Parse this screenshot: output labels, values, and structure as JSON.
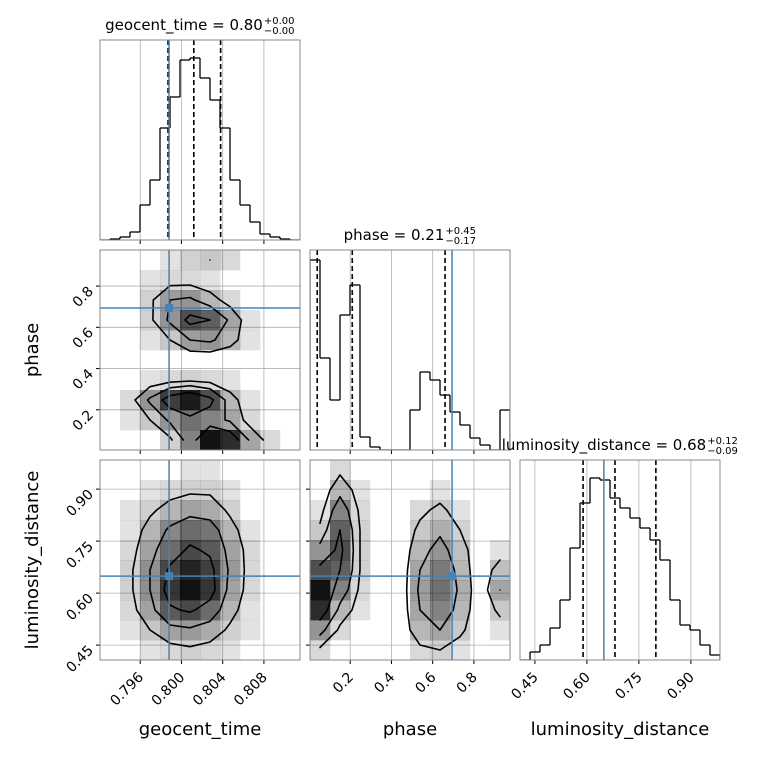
{
  "chart_data": [
    {
      "type": "histogram",
      "title": "geocent_time = 0.80",
      "title_upper": "+0.00",
      "title_lower": "−0.00",
      "bins": [
        0.7921,
        0.79307,
        0.79404,
        0.79501,
        0.79598,
        0.79695,
        0.79792,
        0.79889,
        0.79986,
        0.80083,
        0.8018,
        0.80277,
        0.80374,
        0.80471,
        0.80568,
        0.80665,
        0.80762,
        0.80859,
        0.80956,
        0.81053,
        0.8115
      ],
      "counts": [
        0,
        1,
        3,
        8,
        35,
        60,
        112,
        143,
        180,
        182,
        162,
        140,
        112,
        60,
        35,
        18,
        6,
        3,
        1,
        0
      ],
      "xlim": [
        0.7921,
        0.8115
      ],
      "ylim": [
        0,
        200
      ],
      "xticks": [
        0.796,
        0.8,
        0.804,
        0.808
      ],
      "quantiles": [
        0.7987,
        0.8012,
        0.8038
      ],
      "truth": 0.7988,
      "color": "#000000",
      "truth_color": "#4682b4",
      "grid": true
    },
    {
      "type": "hist2d",
      "ylabel": "phase",
      "xlim": [
        0.7921,
        0.8115
      ],
      "ylim": [
        0.005,
        0.975
      ],
      "xticks": [
        0.796,
        0.8,
        0.804,
        0.808
      ],
      "yticks": [
        0.2,
        0.4,
        0.6,
        0.8
      ],
      "counts": [
        [
          0,
          0,
          0,
          3,
          12,
          25,
          22,
          8,
          2,
          0
        ],
        [
          0,
          1,
          4,
          10,
          14,
          12,
          8,
          2,
          0,
          0
        ],
        [
          0,
          2,
          10,
          20,
          24,
          18,
          6,
          1,
          0,
          0
        ],
        [
          0,
          0,
          1,
          2,
          3,
          2,
          1,
          0,
          0,
          0
        ],
        [
          0,
          0,
          0,
          0,
          0,
          0,
          0,
          0,
          0,
          0
        ],
        [
          0,
          0,
          1,
          4,
          9,
          10,
          6,
          1,
          0,
          0
        ],
        [
          0,
          0,
          3,
          10,
          18,
          16,
          8,
          1,
          0,
          0
        ],
        [
          0,
          0,
          3,
          9,
          10,
          6,
          2,
          0,
          0,
          0
        ],
        [
          0,
          0,
          1,
          2,
          2,
          1,
          0,
          0,
          0,
          0
        ],
        [
          0,
          0,
          0,
          1,
          3,
          4,
          2,
          0,
          0,
          0
        ]
      ],
      "levels": [
        4,
        9,
        16
      ],
      "truth": [
        0.7988,
        0.694
      ],
      "color": "#000000",
      "truth_color": "#4682b4",
      "grid": true
    },
    {
      "type": "hist2d",
      "xlabel": "geocent_time",
      "ylabel": "luminosity_distance",
      "xlim": [
        0.7921,
        0.8115
      ],
      "ylim": [
        0.407,
        0.984
      ],
      "xticks": [
        0.796,
        {
          "value": 0.8,
          "label": "0.800"
        },
        0.804,
        0.808
      ],
      "yticks": [
        0.45,
        {
          "value": 0.6,
          "label": "0.60"
        },
        0.75,
        {
          "value": 0.9,
          "label": "0.90"
        }
      ],
      "counts": [
        [
          0,
          0,
          1,
          2,
          3,
          2,
          1,
          0,
          0,
          0
        ],
        [
          0,
          1,
          4,
          8,
          9,
          7,
          3,
          1,
          0,
          0
        ],
        [
          0,
          2,
          8,
          16,
          18,
          14,
          6,
          1,
          0,
          0
        ],
        [
          0,
          3,
          10,
          20,
          24,
          20,
          8,
          2,
          0,
          0
        ],
        [
          0,
          3,
          10,
          18,
          22,
          19,
          9,
          2,
          0,
          0
        ],
        [
          0,
          2,
          8,
          14,
          18,
          16,
          8,
          2,
          0,
          0
        ],
        [
          0,
          1,
          6,
          11,
          14,
          13,
          6,
          1,
          0,
          0
        ],
        [
          0,
          1,
          3,
          6,
          8,
          7,
          3,
          0,
          0,
          0
        ],
        [
          0,
          0,
          1,
          2,
          3,
          3,
          1,
          0,
          0,
          0
        ],
        [
          0,
          0,
          0,
          0,
          1,
          1,
          0,
          0,
          0,
          0
        ]
      ],
      "levels": [
        4,
        10,
        17
      ],
      "truth": [
        0.7988,
        0.649
      ],
      "color": "#000000",
      "truth_color": "#4682b4",
      "grid": true
    },
    {
      "type": "histogram",
      "title": "phase = 0.21",
      "title_upper": "+0.45",
      "title_lower": "−0.17",
      "bins": [
        0.005,
        0.0535,
        0.102,
        0.1505,
        0.199,
        0.2475,
        0.296,
        0.3445,
        0.393,
        0.4415,
        0.49,
        0.5385,
        0.587,
        0.6355,
        0.684,
        0.7325,
        0.781,
        0.8295,
        0.878,
        0.9265,
        0.975
      ],
      "counts": [
        190,
        92,
        50,
        135,
        165,
        13,
        3,
        0,
        0,
        0,
        40,
        78,
        70,
        55,
        38,
        25,
        12,
        5,
        0,
        40
      ],
      "xlim": [
        0.005,
        0.975
      ],
      "ylim": [
        0,
        200
      ],
      "xticks": [
        0.2,
        0.4,
        0.6,
        0.8
      ],
      "quantiles": [
        0.04,
        0.21,
        0.66
      ],
      "truth": 0.694,
      "color": "#000000",
      "truth_color": "#4682b4",
      "grid": true
    },
    {
      "type": "hist2d",
      "xlabel": "phase",
      "xlim": [
        0.005,
        0.975
      ],
      "ylim": [
        0.407,
        0.984
      ],
      "xticks": [
        0.2,
        0.4,
        0.6,
        0.8
      ],
      "yticks": [
        0.45,
        0.6,
        0.75,
        0.9
      ],
      "counts": [
        [
          2,
          0,
          0,
          0,
          0,
          2,
          3,
          1,
          0,
          0
        ],
        [
          10,
          2,
          0,
          0,
          0,
          6,
          8,
          4,
          0,
          1
        ],
        [
          22,
          6,
          1,
          0,
          0,
          8,
          12,
          6,
          0,
          4
        ],
        [
          25,
          12,
          2,
          0,
          0,
          9,
          14,
          7,
          0,
          8
        ],
        [
          18,
          16,
          3,
          0,
          0,
          8,
          13,
          6,
          0,
          5
        ],
        [
          10,
          18,
          3,
          0,
          0,
          6,
          10,
          5,
          0,
          1
        ],
        [
          4,
          16,
          3,
          0,
          0,
          4,
          7,
          3,
          0,
          0
        ],
        [
          1,
          12,
          2,
          0,
          0,
          2,
          4,
          1,
          0,
          0
        ],
        [
          0,
          6,
          1,
          0,
          0,
          0,
          1,
          0,
          0,
          0
        ],
        [
          0,
          2,
          0,
          0,
          0,
          0,
          0,
          0,
          0,
          0
        ]
      ],
      "levels": [
        3,
        8,
        16
      ],
      "truth": [
        0.694,
        0.649
      ],
      "color": "#000000",
      "truth_color": "#4682b4",
      "grid": true
    },
    {
      "type": "histogram",
      "title": "luminosity_distance = 0.68",
      "title_upper": "+0.12",
      "title_lower": "−0.09",
      "xlabel": "luminosity_distance",
      "bins": [
        0.407,
        0.4359,
        0.4647,
        0.4936,
        0.5224,
        0.5513,
        0.5801,
        0.609,
        0.6378,
        0.6667,
        0.6955,
        0.7244,
        0.7532,
        0.7821,
        0.8109,
        0.8398,
        0.8686,
        0.8975,
        0.9263,
        0.9552,
        0.984
      ],
      "counts": [
        0,
        8,
        15,
        32,
        60,
        112,
        157,
        182,
        180,
        162,
        152,
        142,
        132,
        120,
        100,
        60,
        35,
        30,
        15,
        5
      ],
      "xlim": [
        0.407,
        0.984
      ],
      "ylim": [
        0,
        200
      ],
      "xticks": [
        0.45,
        {
          "value": 0.6,
          "label": "0.60"
        },
        0.75,
        {
          "value": 0.9,
          "label": "0.90"
        }
      ],
      "quantiles": [
        0.589,
        0.681,
        0.799
      ],
      "truth": 0.649,
      "color": "#000000",
      "truth_color": "#4682b4",
      "grid": true
    }
  ]
}
